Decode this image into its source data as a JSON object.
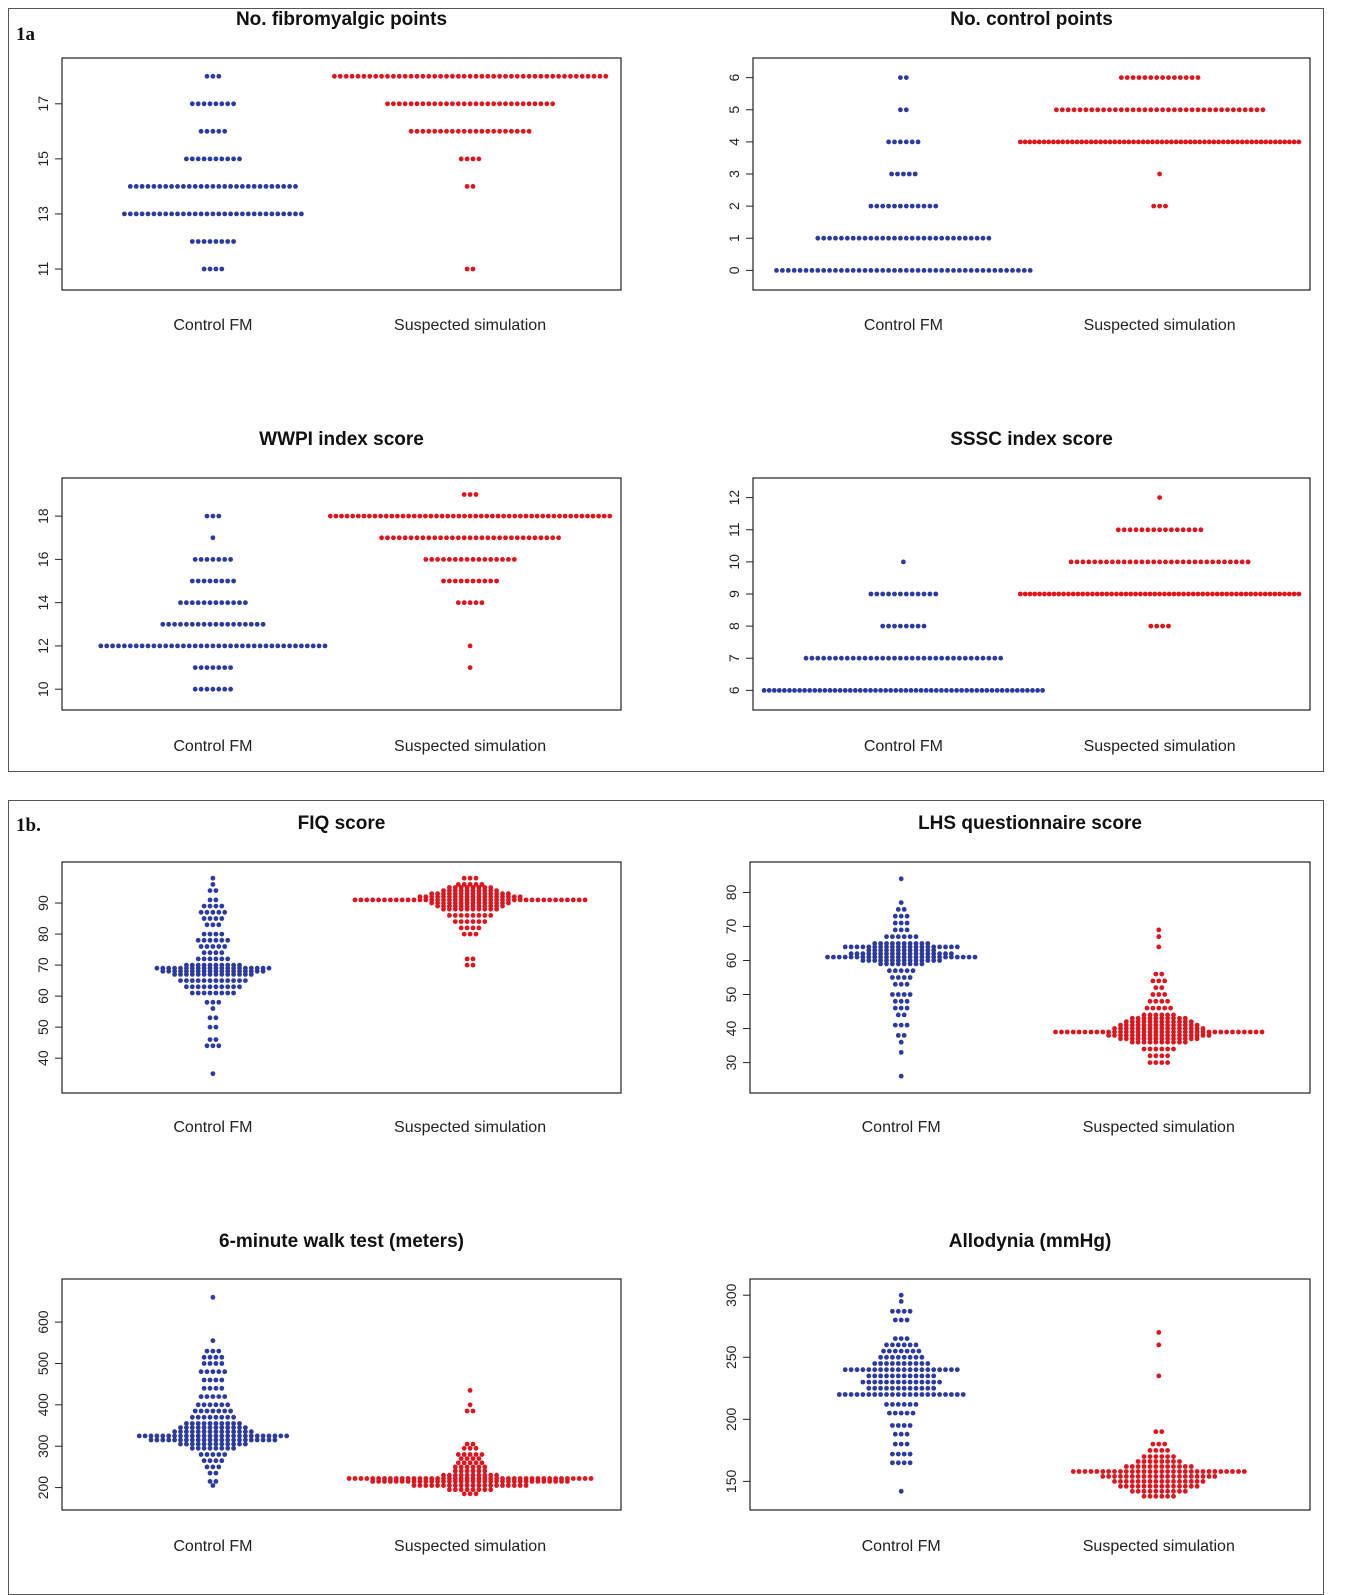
{
  "figure": {
    "panel_a_tag": "1a",
    "panel_b_tag": "1b.",
    "colors": {
      "control": "#2a3aa0",
      "simulation": "#e0141c",
      "frame": "#222222"
    }
  },
  "chart_data": [
    {
      "type": "scatter",
      "subtype": "beeswarm",
      "title": "No. fibromyalgic points",
      "categories": [
        "Control FM",
        "Suspected simulation"
      ],
      "yticks": [
        "11",
        "13",
        "15",
        "17"
      ],
      "ylim": [
        10.6,
        18.3
      ],
      "series": [
        {
          "counts": {
            "11": 4,
            "12": 8,
            "13": 31,
            "14": 29,
            "15": 10,
            "16": 5,
            "17": 8,
            "18": 3
          }
        },
        {
          "counts": {
            "11": 2,
            "14": 2,
            "15": 4,
            "16": 21,
            "17": 29,
            "18": 47
          }
        }
      ]
    },
    {
      "type": "scatter",
      "subtype": "beeswarm",
      "title": "No. control points",
      "categories": [
        "Control FM",
        "Suspected simulation"
      ],
      "yticks": [
        "0",
        "1",
        "2",
        "3",
        "4",
        "5",
        "6"
      ],
      "ylim": [
        -0.3,
        6.3
      ],
      "series": [
        {
          "counts": {
            "0": 44,
            "1": 30,
            "2": 12,
            "3": 5,
            "4": 6,
            "5": 2,
            "6": 2
          }
        },
        {
          "counts": {
            "2": 3,
            "3": 1,
            "4": 60,
            "5": 36,
            "6": 14
          }
        }
      ]
    },
    {
      "type": "scatter",
      "subtype": "beeswarm",
      "title": "WWPI index score",
      "categories": [
        "Control FM",
        "Suspected simulation"
      ],
      "yticks": [
        "10",
        "12",
        "14",
        "16",
        "18"
      ],
      "ylim": [
        9.5,
        19.3
      ],
      "series": [
        {
          "counts": {
            "10": 7,
            "11": 7,
            "12": 39,
            "13": 18,
            "14": 12,
            "15": 8,
            "16": 7,
            "17": 1,
            "18": 3
          }
        },
        {
          "counts": {
            "11": 1,
            "12": 1,
            "14": 5,
            "15": 10,
            "16": 16,
            "17": 31,
            "18": 51,
            "19": 3
          }
        }
      ]
    },
    {
      "type": "scatter",
      "subtype": "beeswarm",
      "title": "SSSC index score",
      "categories": [
        "Control FM",
        "Suspected simulation"
      ],
      "yticks": [
        "6",
        "7",
        "8",
        "9",
        "10",
        "11",
        "12"
      ],
      "ylim": [
        5.7,
        12.3
      ],
      "series": [
        {
          "counts": {
            "6": 56,
            "7": 34,
            "8": 8,
            "9": 12,
            "10": 1
          }
        },
        {
          "counts": {
            "8": 4,
            "9": 59,
            "10": 31,
            "11": 15,
            "12": 1
          }
        }
      ]
    },
    {
      "type": "scatter",
      "subtype": "beeswarm",
      "title": "FIQ score",
      "categories": [
        "Control FM",
        "Suspected simulation"
      ],
      "yticks": [
        "40",
        "50",
        "60",
        "70",
        "80",
        "90"
      ],
      "ylim": [
        32,
        100
      ],
      "series": [
        {
          "counts": {
            "35": 1,
            "38": 0,
            "44": 3,
            "46": 2,
            "50": 2,
            "53": 2,
            "56": 1,
            "58": 3,
            "61": 8,
            "63": 10,
            "65": 12,
            "67": 14,
            "68": 18,
            "69": 20,
            "70": 10,
            "72": 6,
            "74": 4,
            "76": 5,
            "78": 6,
            "80": 4,
            "83": 3,
            "85": 4,
            "87": 5,
            "89": 4,
            "91": 2,
            "94": 2,
            "96": 1,
            "98": 1
          }
        },
        {
          "counts": {
            "70": 2,
            "72": 2,
            "80": 3,
            "82": 4,
            "84": 6,
            "86": 8,
            "88": 10,
            "89": 12,
            "90": 14,
            "91": 40,
            "92": 18,
            "93": 14,
            "94": 10,
            "95": 8,
            "96": 5,
            "98": 3
          }
        }
      ]
    },
    {
      "type": "scatter",
      "subtype": "beeswarm",
      "title": "LHS questionnaire score",
      "categories": [
        "Control FM",
        "Suspected simulation"
      ],
      "yticks": [
        "30",
        "40",
        "50",
        "60",
        "70",
        "80"
      ],
      "ylim": [
        24,
        86
      ],
      "series": [
        {
          "counts": {
            "26": 1,
            "33": 1,
            "36": 1,
            "38": 2,
            "41": 3,
            "44": 2,
            "46": 3,
            "48": 3,
            "50": 4,
            "53": 3,
            "55": 4,
            "57": 5,
            "59": 8,
            "60": 14,
            "61": 26,
            "62": 18,
            "63": 12,
            "64": 20,
            "65": 10,
            "67": 6,
            "69": 3,
            "71": 3,
            "73": 3,
            "75": 2,
            "77": 1,
            "84": 1
          }
        },
        {
          "counts": {
            "30": 4,
            "32": 4,
            "34": 6,
            "36": 10,
            "37": 14,
            "38": 18,
            "39": 36,
            "40": 16,
            "41": 14,
            "42": 12,
            "43": 10,
            "44": 6,
            "46": 5,
            "48": 4,
            "50": 3,
            "52": 2,
            "54": 3,
            "56": 2,
            "64": 1,
            "67": 1,
            "69": 1
          }
        }
      ]
    },
    {
      "type": "scatter",
      "subtype": "beeswarm",
      "title": "6-minute walk test (meters)",
      "categories": [
        "Control FM",
        "Suspected simulation"
      ],
      "yticks": [
        "200",
        "300",
        "400",
        "500",
        "600"
      ],
      "ylim": [
        170,
        680
      ],
      "series": [
        {
          "counts": {
            "205": 1,
            "215": 2,
            "235": 2,
            "250": 3,
            "265": 4,
            "280": 5,
            "295": 8,
            "305": 12,
            "315": 22,
            "325": 26,
            "335": 14,
            "345": 12,
            "355": 10,
            "370": 8,
            "385": 7,
            "400": 6,
            "420": 5,
            "440": 4,
            "460": 4,
            "480": 5,
            "500": 4,
            "515": 4,
            "530": 3,
            "555": 1,
            "660": 1
          }
        },
        {
          "counts": {
            "185": 3,
            "195": 8,
            "205": 20,
            "215": 34,
            "222": 42,
            "230": 10,
            "240": 6,
            "250": 6,
            "260": 5,
            "270": 4,
            "280": 5,
            "295": 3,
            "305": 2,
            "385": 2,
            "400": 1,
            "435": 1
          }
        }
      ]
    },
    {
      "type": "scatter",
      "subtype": "beeswarm",
      "title": "Allodynia (mmHg)",
      "categories": [
        "Control FM",
        "Suspected simulation"
      ],
      "yticks": [
        "150",
        "200",
        "250",
        "300"
      ],
      "ylim": [
        135,
        305
      ],
      "series": [
        {
          "counts": {
            "142": 1,
            "165": 4,
            "172": 4,
            "180": 3,
            "188": 3,
            "195": 4,
            "205": 5,
            "212": 6,
            "220": 22,
            "225": 12,
            "230": 14,
            "235": 12,
            "240": 20,
            "245": 10,
            "250": 8,
            "255": 7,
            "260": 6,
            "265": 3,
            "280": 3,
            "287": 4,
            "295": 1,
            "300": 1
          }
        },
        {
          "counts": {
            "138": 6,
            "142": 10,
            "146": 14,
            "150": 16,
            "154": 20,
            "158": 30,
            "162": 12,
            "166": 8,
            "170": 6,
            "175": 4,
            "180": 3,
            "190": 2,
            "235": 1,
            "260": 1,
            "270": 1
          }
        }
      ]
    }
  ]
}
